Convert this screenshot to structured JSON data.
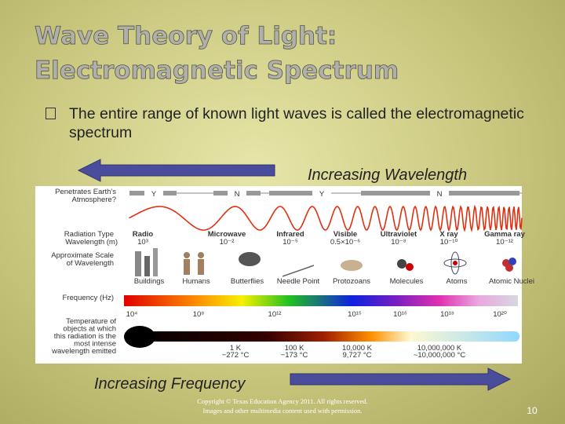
{
  "title_lines": [
    "Wave Theory of Light:",
    "Electromagnetic Spectrum"
  ],
  "bullet": "The entire range of known light waves is called the electromagnetic spectrum",
  "arrows": {
    "wavelength": "Increasing Wavelength",
    "frequency": "Increasing Frequency"
  },
  "diagram": {
    "penetrates_label": [
      "Penetrates Earth's",
      "Atmosphere?"
    ],
    "penetration": [
      "Y",
      "N",
      "Y",
      "N"
    ],
    "radiation_type_label": "Radiation Type",
    "wavelength_label": "Wavelength (m)",
    "scale_label": [
      "Approximate Scale",
      "of Wavelength"
    ],
    "bands": [
      {
        "name": "Radio",
        "wavelength": "10³"
      },
      {
        "name": "Microwave",
        "wavelength": "10⁻²"
      },
      {
        "name": "Infrared",
        "wavelength": "10⁻⁵"
      },
      {
        "name": "Visible",
        "wavelength": "0.5×10⁻⁶"
      },
      {
        "name": "Ultraviolet",
        "wavelength": "10⁻⁸"
      },
      {
        "name": "X ray",
        "wavelength": "10⁻¹⁰"
      },
      {
        "name": "Gamma ray",
        "wavelength": "10⁻¹²"
      }
    ],
    "scales": [
      "Buildings",
      "Humans",
      "Butterflies",
      "Needle Point",
      "Protozoans",
      "Molecules",
      "Atoms",
      "Atomic Nuclei"
    ],
    "frequency_label": "Frequency (Hz)",
    "frequencies": [
      "10⁴",
      "10⁸",
      "10¹²",
      "10¹⁵",
      "10¹⁶",
      "10¹⁸",
      "10²⁰"
    ],
    "temperature_label": [
      "Temperature of",
      "objects at which",
      "this radiation is the",
      "most intense",
      "wavelength emitted"
    ],
    "temperatures": [
      {
        "kelvin": "1 K",
        "celsius": "−272 °C"
      },
      {
        "kelvin": "100 K",
        "celsius": "−173 °C"
      },
      {
        "kelvin": "10,000 K",
        "celsius": "9,727 °C"
      },
      {
        "kelvin": "10,000,000 K",
        "celsius": "~10,000,000 °C"
      }
    ]
  },
  "footer": {
    "copyright": [
      "Copyright © Texas Education Agency 2011. All rights reserved.",
      "Images and other multimedia content used with permission."
    ],
    "page": "10"
  }
}
